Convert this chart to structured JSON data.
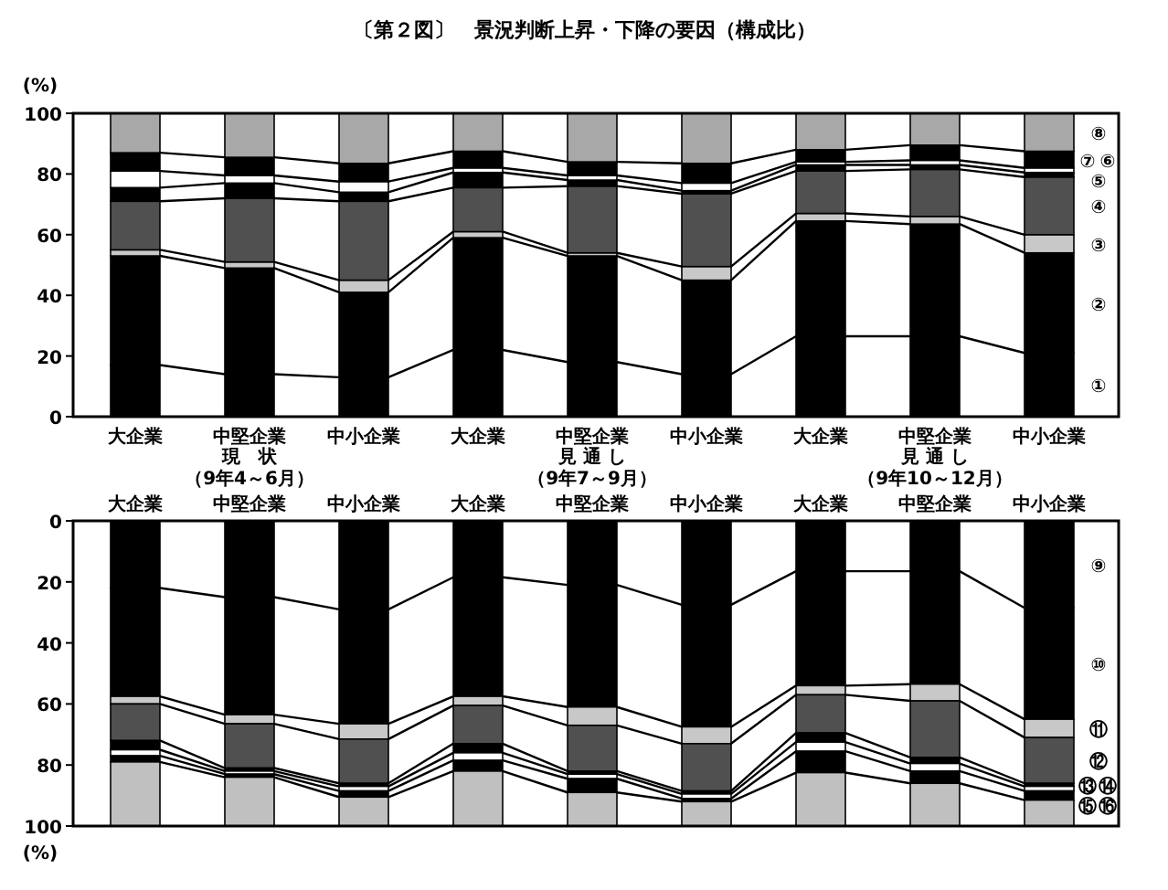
{
  "chart_data": [
    {
      "type": "bar",
      "stacked": true,
      "title": "〔第２図〕　景況判断上昇・下降の要因（構成比）",
      "ylabel": "(%)",
      "ylim": [
        0,
        100
      ],
      "yticks": [
        0,
        20,
        40,
        60,
        80,
        100
      ],
      "categories": [
        "大企業",
        "中堅企業",
        "中小企業",
        "大企業",
        "中堅企業",
        "中小企業",
        "大企業",
        "中堅企業",
        "中小企業"
      ],
      "annotations": [
        "現　状",
        "（9年4～6月）",
        "見 通 し",
        "（9年7～9月）",
        "見 通 し",
        "（9年10～12月）"
      ],
      "series": [
        {
          "name": "①",
          "color": "#000000",
          "values": [
            17,
            14,
            13,
            22,
            18,
            14,
            26.5,
            26.5,
            21
          ]
        },
        {
          "name": "②",
          "color": "#000000",
          "values": [
            36,
            35,
            28,
            37,
            35,
            31,
            38,
            37,
            33
          ]
        },
        {
          "name": "③",
          "color": "#c8c8c8",
          "values": [
            2,
            2,
            4,
            2,
            1,
            4.5,
            2.5,
            2.5,
            6
          ]
        },
        {
          "name": "④",
          "color": "#505050",
          "values": [
            16,
            21,
            26,
            14.5,
            22,
            24,
            14,
            15.5,
            19
          ]
        },
        {
          "name": "⑤",
          "color": "#000000",
          "values": [
            4.5,
            5,
            3,
            5,
            2,
            1,
            2,
            1.5,
            1.5
          ]
        },
        {
          "name": "⑥",
          "color": "#ffffff",
          "values": [
            5.5,
            2.5,
            3.5,
            1.5,
            1.5,
            2.5,
            1,
            1.5,
            1.5
          ]
        },
        {
          "name": "⑦",
          "color": "#000000",
          "values": [
            6,
            6,
            6,
            5.5,
            4.5,
            6.5,
            4,
            5,
            5.5
          ]
        },
        {
          "name": "⑧",
          "color": "#a8a8a8",
          "values": [
            13,
            14.5,
            16.5,
            12.5,
            16,
            16.5,
            12,
            10.5,
            12.5
          ]
        }
      ]
    },
    {
      "type": "bar",
      "stacked": true,
      "ylabel": "(%)",
      "ylim": [
        100,
        0
      ],
      "yticks": [
        0,
        20,
        40,
        60,
        80,
        100
      ],
      "categories": [
        "大企業",
        "中堅企業",
        "中小企業",
        "大企業",
        "中堅企業",
        "中小企業",
        "大企業",
        "中堅企業",
        "中小企業"
      ],
      "series": [
        {
          "name": "⑨",
          "color": "#000000",
          "values": [
            22,
            25,
            29,
            18.5,
            21,
            27.5,
            16.5,
            16.5,
            28.5
          ]
        },
        {
          "name": "⑩",
          "color": "#000000",
          "values": [
            35.5,
            38.5,
            37.5,
            39,
            40,
            40,
            37.5,
            37,
            36.5
          ]
        },
        {
          "name": "⑪",
          "color": "#c8c8c8",
          "values": [
            2.5,
            3,
            5,
            3,
            6,
            5.5,
            3,
            5.5,
            6
          ]
        },
        {
          "name": "⑫",
          "color": "#505050",
          "values": [
            12,
            14.5,
            14.5,
            12.5,
            15,
            15.5,
            12.5,
            18.5,
            15
          ]
        },
        {
          "name": "⑬",
          "color": "#000000",
          "values": [
            3,
            1,
            1,
            3,
            1,
            1,
            3,
            2,
            1
          ]
        },
        {
          "name": "⑭",
          "color": "#ffffff",
          "values": [
            2,
            1,
            1.5,
            2.5,
            1.5,
            1.5,
            3,
            2.5,
            1.5
          ]
        },
        {
          "name": "⑮",
          "color": "#000000",
          "values": [
            2,
            1,
            2,
            3.5,
            4.5,
            1,
            7,
            4,
            3
          ]
        },
        {
          "name": "⑯",
          "color": "#c0c0c0",
          "values": [
            21,
            16,
            9.5,
            18,
            11,
            8,
            17.5,
            14,
            8.5
          ]
        }
      ]
    }
  ]
}
